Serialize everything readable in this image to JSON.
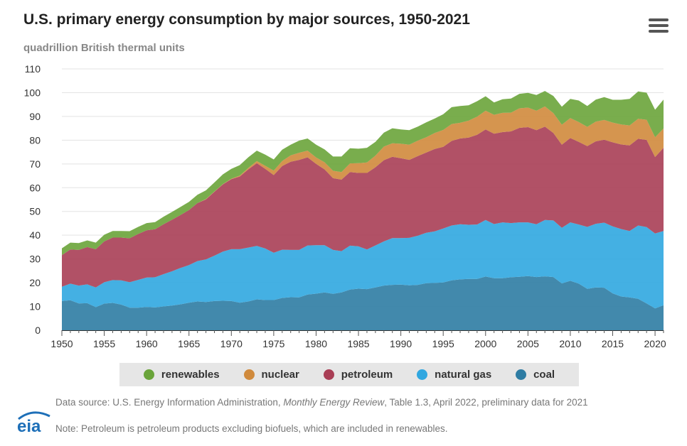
{
  "header": {
    "title": "U.S. primary energy consumption by major sources, 1950-2021",
    "subtitle": "quadrillion British thermal units"
  },
  "menu": {
    "icon": "hamburger-menu-icon"
  },
  "chart_data": {
    "type": "area",
    "stacked": true,
    "title": "U.S. primary energy consumption by major sources, 1950-2021",
    "ylabel": "quadrillion British thermal units",
    "xlabel": "",
    "xlim": [
      1950,
      2021
    ],
    "ylim": [
      0,
      110
    ],
    "yticks": [
      0,
      10,
      20,
      30,
      40,
      50,
      60,
      70,
      80,
      90,
      100,
      110
    ],
    "xticks": [
      1950,
      1955,
      1960,
      1965,
      1970,
      1975,
      1980,
      1985,
      1990,
      1995,
      2000,
      2005,
      2010,
      2015,
      2020
    ],
    "grid": true,
    "legend_position": "bottom",
    "x": [
      1950,
      1951,
      1952,
      1953,
      1954,
      1955,
      1956,
      1957,
      1958,
      1959,
      1960,
      1961,
      1962,
      1963,
      1964,
      1965,
      1966,
      1967,
      1968,
      1969,
      1970,
      1971,
      1972,
      1973,
      1974,
      1975,
      1976,
      1977,
      1978,
      1979,
      1980,
      1981,
      1982,
      1983,
      1984,
      1985,
      1986,
      1987,
      1988,
      1989,
      1990,
      1991,
      1992,
      1993,
      1994,
      1995,
      1996,
      1997,
      1998,
      1999,
      2000,
      2001,
      2002,
      2003,
      2004,
      2005,
      2006,
      2007,
      2008,
      2009,
      2010,
      2011,
      2012,
      2013,
      2014,
      2015,
      2016,
      2017,
      2018,
      2019,
      2020,
      2021
    ],
    "series": [
      {
        "name": "coal",
        "color": "#2e7ca3",
        "values": [
          12.3,
          12.6,
          11.3,
          11.4,
          9.7,
          11.2,
          11.5,
          10.8,
          9.5,
          9.5,
          9.8,
          9.6,
          10.0,
          10.4,
          10.9,
          11.6,
          12.1,
          11.9,
          12.3,
          12.4,
          12.3,
          11.6,
          12.1,
          13.0,
          12.7,
          12.7,
          13.6,
          13.9,
          13.8,
          15.0,
          15.4,
          15.9,
          15.3,
          15.9,
          17.1,
          17.5,
          17.3,
          18.0,
          18.8,
          19.1,
          19.2,
          18.9,
          19.1,
          19.8,
          19.9,
          20.1,
          21.0,
          21.4,
          21.6,
          21.6,
          22.6,
          21.9,
          21.9,
          22.3,
          22.5,
          22.8,
          22.4,
          22.7,
          22.4,
          19.7,
          20.8,
          19.6,
          17.4,
          18.0,
          17.9,
          15.5,
          14.2,
          13.8,
          13.2,
          11.3,
          9.2,
          10.5
        ]
      },
      {
        "name": "natural gas",
        "color": "#30a7e0",
        "values": [
          6.0,
          7.0,
          7.5,
          7.9,
          8.3,
          9.0,
          9.6,
          10.2,
          10.7,
          11.7,
          12.4,
          12.7,
          13.6,
          14.4,
          15.3,
          15.8,
          17.0,
          17.9,
          19.1,
          20.7,
          21.8,
          22.5,
          22.7,
          22.5,
          21.7,
          19.9,
          20.3,
          19.9,
          20.0,
          20.7,
          20.4,
          19.9,
          18.5,
          17.4,
          18.5,
          17.8,
          16.7,
          17.7,
          18.6,
          19.7,
          19.6,
          20.0,
          20.7,
          21.2,
          21.7,
          22.7,
          23.1,
          23.2,
          22.8,
          22.9,
          23.8,
          22.8,
          23.5,
          22.8,
          22.9,
          22.6,
          22.2,
          23.7,
          23.8,
          23.4,
          24.6,
          24.9,
          26.1,
          26.8,
          27.4,
          28.2,
          28.4,
          28.0,
          30.9,
          32.1,
          31.5,
          31.3
        ]
      },
      {
        "name": "petroleum",
        "color": "#a93e55",
        "values": [
          13.3,
          14.4,
          15.0,
          15.7,
          16.1,
          17.2,
          17.9,
          18.0,
          18.5,
          19.3,
          19.9,
          20.2,
          21.0,
          21.7,
          22.3,
          23.2,
          24.4,
          25.3,
          26.9,
          28.3,
          29.5,
          30.6,
          32.9,
          34.8,
          33.5,
          32.7,
          35.2,
          37.1,
          37.9,
          37.1,
          34.2,
          31.9,
          30.2,
          30.1,
          31.0,
          30.9,
          32.2,
          32.9,
          34.2,
          34.2,
          33.6,
          32.8,
          33.5,
          33.8,
          34.7,
          34.4,
          35.6,
          36.1,
          36.7,
          37.8,
          38.1,
          38.0,
          38.0,
          38.6,
          39.8,
          40.1,
          39.6,
          39.3,
          36.8,
          35.0,
          35.5,
          34.8,
          34.0,
          34.7,
          34.9,
          35.4,
          35.6,
          36.0,
          36.5,
          36.7,
          32.2,
          35.0
        ]
      },
      {
        "name": "nuclear",
        "color": "#d08a3c",
        "values": [
          0,
          0,
          0,
          0,
          0,
          0,
          0,
          0,
          0,
          0,
          0,
          0,
          0,
          0,
          0,
          0,
          0,
          0.1,
          0.1,
          0.1,
          0.2,
          0.4,
          0.6,
          0.9,
          1.3,
          1.9,
          2.1,
          2.7,
          3.0,
          2.8,
          2.7,
          3.0,
          3.1,
          3.2,
          3.6,
          4.1,
          4.4,
          4.9,
          5.7,
          5.7,
          6.1,
          6.4,
          6.5,
          6.4,
          6.7,
          7.1,
          7.1,
          6.6,
          7.1,
          7.6,
          7.9,
          8.0,
          8.1,
          7.9,
          8.2,
          8.2,
          8.2,
          8.5,
          8.4,
          8.4,
          8.4,
          8.3,
          8.1,
          8.3,
          8.3,
          8.3,
          8.4,
          8.4,
          8.4,
          8.5,
          8.3,
          8.1
        ]
      },
      {
        "name": "renewables",
        "color": "#6aa43a",
        "values": [
          2.9,
          2.9,
          2.9,
          2.8,
          2.8,
          2.8,
          2.8,
          2.8,
          3.0,
          3.0,
          3.0,
          3.0,
          3.2,
          3.3,
          3.4,
          3.4,
          3.5,
          3.7,
          3.8,
          4.1,
          4.1,
          4.4,
          4.5,
          4.4,
          4.7,
          4.7,
          4.8,
          4.5,
          5.1,
          5.1,
          5.4,
          5.4,
          6.0,
          6.5,
          6.4,
          6.1,
          6.2,
          5.8,
          5.9,
          6.3,
          6.0,
          6.1,
          5.9,
          6.3,
          6.1,
          6.6,
          7.1,
          7.1,
          6.5,
          6.5,
          6.1,
          5.2,
          5.7,
          5.9,
          6.1,
          6.2,
          6.6,
          6.5,
          7.2,
          7.6,
          8.1,
          9.1,
          8.8,
          9.3,
          9.6,
          9.6,
          10.4,
          11.2,
          11.5,
          11.4,
          11.6,
          12.2
        ]
      }
    ],
    "legend": [
      "renewables",
      "nuclear",
      "petroleum",
      "natural gas",
      "coal"
    ]
  },
  "legend": {
    "items": [
      {
        "label": "renewables",
        "color": "#6aa43a"
      },
      {
        "label": "nuclear",
        "color": "#d08a3c"
      },
      {
        "label": "petroleum",
        "color": "#a93e55"
      },
      {
        "label": "natural gas",
        "color": "#30a7e0"
      },
      {
        "label": "coal",
        "color": "#2e7ca3"
      }
    ]
  },
  "footer": {
    "source_prefix": "Data source: U.S. Energy Information Administration, ",
    "source_italic": "Monthly Energy Review",
    "source_suffix": ", Table 1.3, April 2022, preliminary data for 2021",
    "note": "Note: Petroleum is petroleum products excluding biofuels, which are included in renewables.",
    "logo_text": "eia",
    "logo_color": "#1d6fb8"
  }
}
